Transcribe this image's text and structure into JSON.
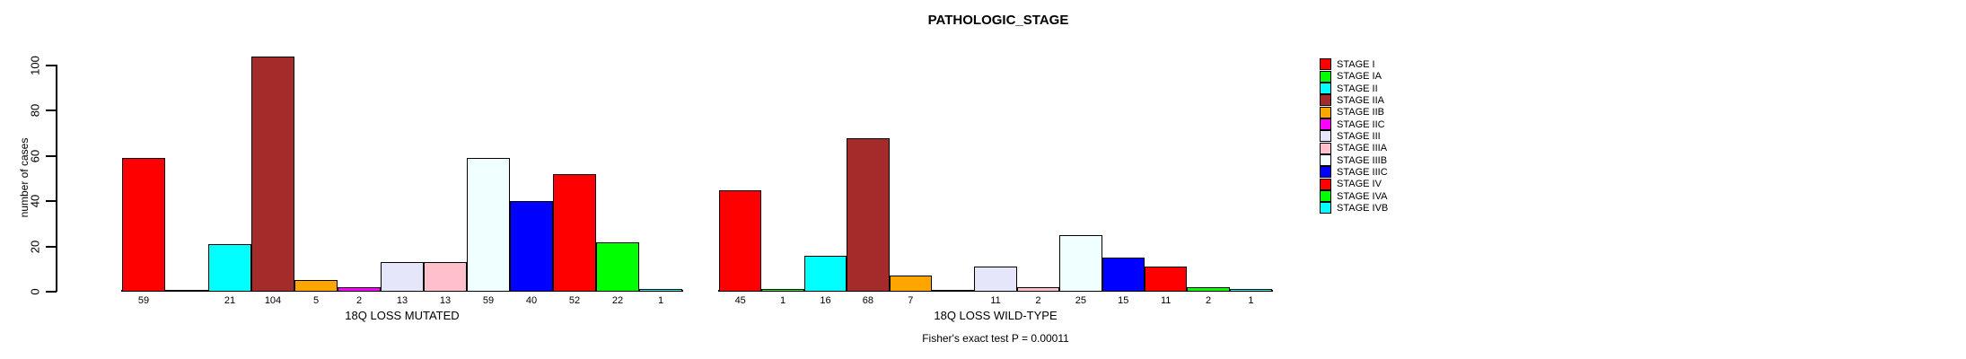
{
  "title": "PATHOLOGIC_STAGE",
  "y_axis": {
    "label": "number of cases"
  },
  "footer": {
    "fisher_text": "Fisher's exact test P = 0.00011"
  },
  "chart_data": {
    "type": "bar",
    "title": "PATHOLOGIC_STAGE",
    "ylabel": "number of cases",
    "ylim": [
      0,
      104
    ],
    "yticks": [
      0,
      20,
      40,
      60,
      80,
      100
    ],
    "grid": false,
    "legend_position": "right",
    "categories": [
      "STAGE I",
      "STAGE IA",
      "STAGE II",
      "STAGE IIA",
      "STAGE IIB",
      "STAGE IIC",
      "STAGE III",
      "STAGE IIIA",
      "STAGE IIIB",
      "STAGE IIIC",
      "STAGE IV",
      "STAGE IVA",
      "STAGE IVB"
    ],
    "colors": [
      "#FF0000",
      "#00FF00",
      "#00FFFF",
      "#A52A2A",
      "#FFA500",
      "#FF00FF",
      "#E6E6FA",
      "#FFC0CB",
      "#F0FFFF",
      "#0000FF",
      "#FF0000",
      "#00FF00",
      "#00FFFF"
    ],
    "series": [
      {
        "name": "18Q LOSS MUTATED",
        "values": [
          59,
          null,
          21,
          104,
          5,
          2,
          13,
          13,
          59,
          40,
          52,
          22,
          1
        ]
      },
      {
        "name": "18Q LOSS WILD-TYPE",
        "values": [
          45,
          1,
          16,
          68,
          7,
          null,
          11,
          2,
          25,
          15,
          11,
          2,
          1
        ]
      }
    ],
    "annotation": "Fisher's exact test P = 0.00011"
  }
}
